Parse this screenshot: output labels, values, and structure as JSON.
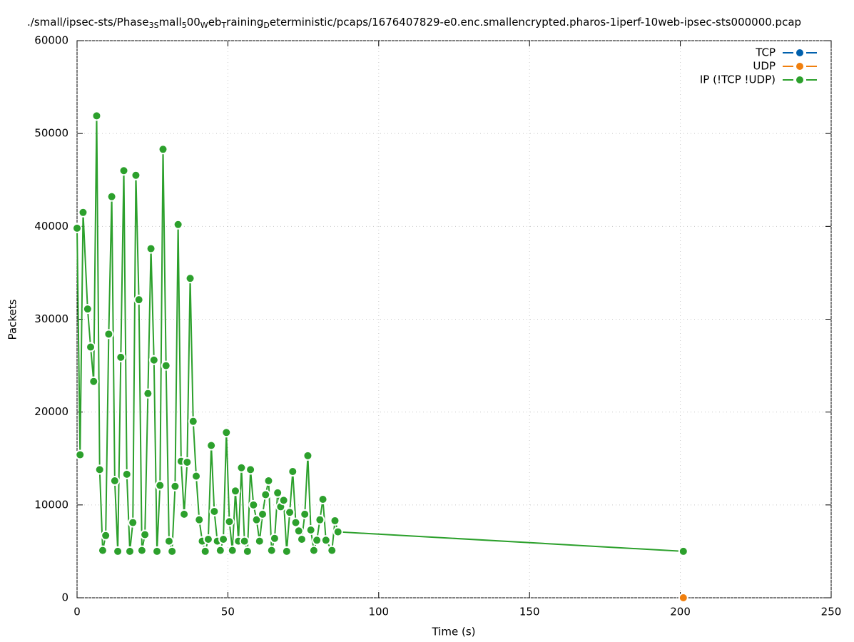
{
  "chart_data": {
    "type": "line",
    "title_parts": [
      "./small/ipsec-sts/Phase",
      "3S",
      "mall",
      "5",
      "00",
      "W",
      "eb",
      "T",
      "raining",
      "D",
      "eterministic/pcaps/1676407829-e0.enc.smallencrypted.pharos-1iperf-10web-ipsec-sts000000.pcap"
    ],
    "x_label": "Time (s)",
    "y_label": "Packets",
    "xlim": [
      0,
      250
    ],
    "xticks": [
      0,
      50,
      100,
      150,
      200,
      250
    ],
    "ylim": [
      0,
      60000
    ],
    "yticks": [
      0,
      10000,
      20000,
      30000,
      40000,
      50000,
      60000
    ],
    "grid": true,
    "legend": "top-right",
    "series": [
      {
        "name": "TCP",
        "color": "#0060ad",
        "x": [],
        "values": []
      },
      {
        "name": "UDP",
        "color": "#f07f0e",
        "x": [
          201
        ],
        "values": [
          0
        ]
      },
      {
        "name": "IP (!TCP  !UDP)",
        "color": "#2ca02c",
        "x": [
          0,
          1,
          2,
          3.5,
          4.5,
          5.5,
          6.5,
          7.5,
          8.5,
          9.5,
          10.5,
          11.5,
          12.5,
          13.5,
          14.5,
          15.5,
          16.5,
          17.5,
          18.5,
          19.5,
          20.5,
          21.5,
          22.5,
          23.5,
          24.5,
          25.5,
          26.5,
          27.5,
          28.5,
          29.5,
          30.5,
          31.5,
          32.5,
          33.5,
          34.5,
          35.5,
          36.5,
          37.5,
          38.5,
          39.5,
          40.5,
          41.5,
          42.5,
          43.5,
          44.5,
          45.5,
          46.5,
          47.5,
          48.5,
          49.5,
          50.5,
          51.5,
          52.5,
          53.5,
          54.5,
          55.5,
          56.5,
          57.5,
          58.5,
          59.5,
          60.5,
          61.5,
          62.5,
          63.5,
          64.5,
          65.5,
          66.5,
          67.5,
          68.5,
          69.5,
          70.5,
          71.5,
          72.5,
          73.5,
          74.5,
          75.5,
          76.5,
          77.5,
          78.5,
          79.5,
          80.5,
          81.5,
          82.5,
          84.5,
          85.5,
          86.5,
          201
        ],
        "values": [
          39800,
          15400,
          41500,
          31100,
          27000,
          23300,
          51900,
          13800,
          5100,
          6700,
          28400,
          43200,
          12600,
          5000,
          25900,
          46000,
          13300,
          5000,
          8100,
          45500,
          32100,
          5100,
          6800,
          22000,
          37600,
          25600,
          5000,
          12100,
          48300,
          25000,
          6100,
          5000,
          12000,
          40200,
          14700,
          9000,
          14600,
          34400,
          19000,
          13100,
          8400,
          6100,
          5000,
          6300,
          16400,
          9300,
          6100,
          5100,
          6300,
          17800,
          8200,
          5100,
          11500,
          6100,
          14000,
          6100,
          5000,
          13800,
          10000,
          8400,
          6100,
          9000,
          11100,
          12600,
          5100,
          6400,
          11300,
          9800,
          10500,
          5000,
          9200,
          13600,
          8100,
          7200,
          6300,
          9000,
          15300,
          7300,
          5100,
          6200,
          8400,
          10600,
          6200,
          5100,
          8300,
          7100,
          5000
        ]
      }
    ]
  }
}
